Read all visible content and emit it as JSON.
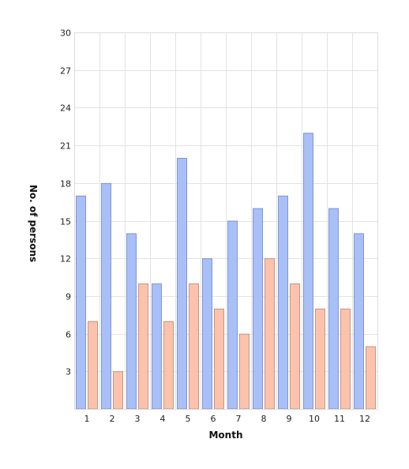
{
  "chart_data": {
    "type": "bar",
    "categories": [
      "1",
      "2",
      "3",
      "4",
      "5",
      "6",
      "7",
      "8",
      "9",
      "10",
      "11",
      "12"
    ],
    "series": [
      {
        "values": [
          17,
          18,
          14,
          10,
          20,
          12,
          15,
          16,
          17,
          22,
          16,
          14
        ],
        "color": "#a9bff7",
        "stroke": "#6f84c9"
      },
      {
        "values": [
          7,
          3,
          10,
          7,
          10,
          8,
          6,
          12,
          10,
          8,
          8,
          5
        ],
        "color": "#fcc2ab",
        "stroke": "#b88470"
      }
    ],
    "y_ticks": [
      "3",
      "6",
      "9",
      "12",
      "15",
      "18",
      "21",
      "24",
      "27",
      "30"
    ],
    "title": "",
    "xlabel": "Month",
    "ylabel": "No. of persons",
    "ylim": [
      0,
      30
    ],
    "grid": true
  }
}
